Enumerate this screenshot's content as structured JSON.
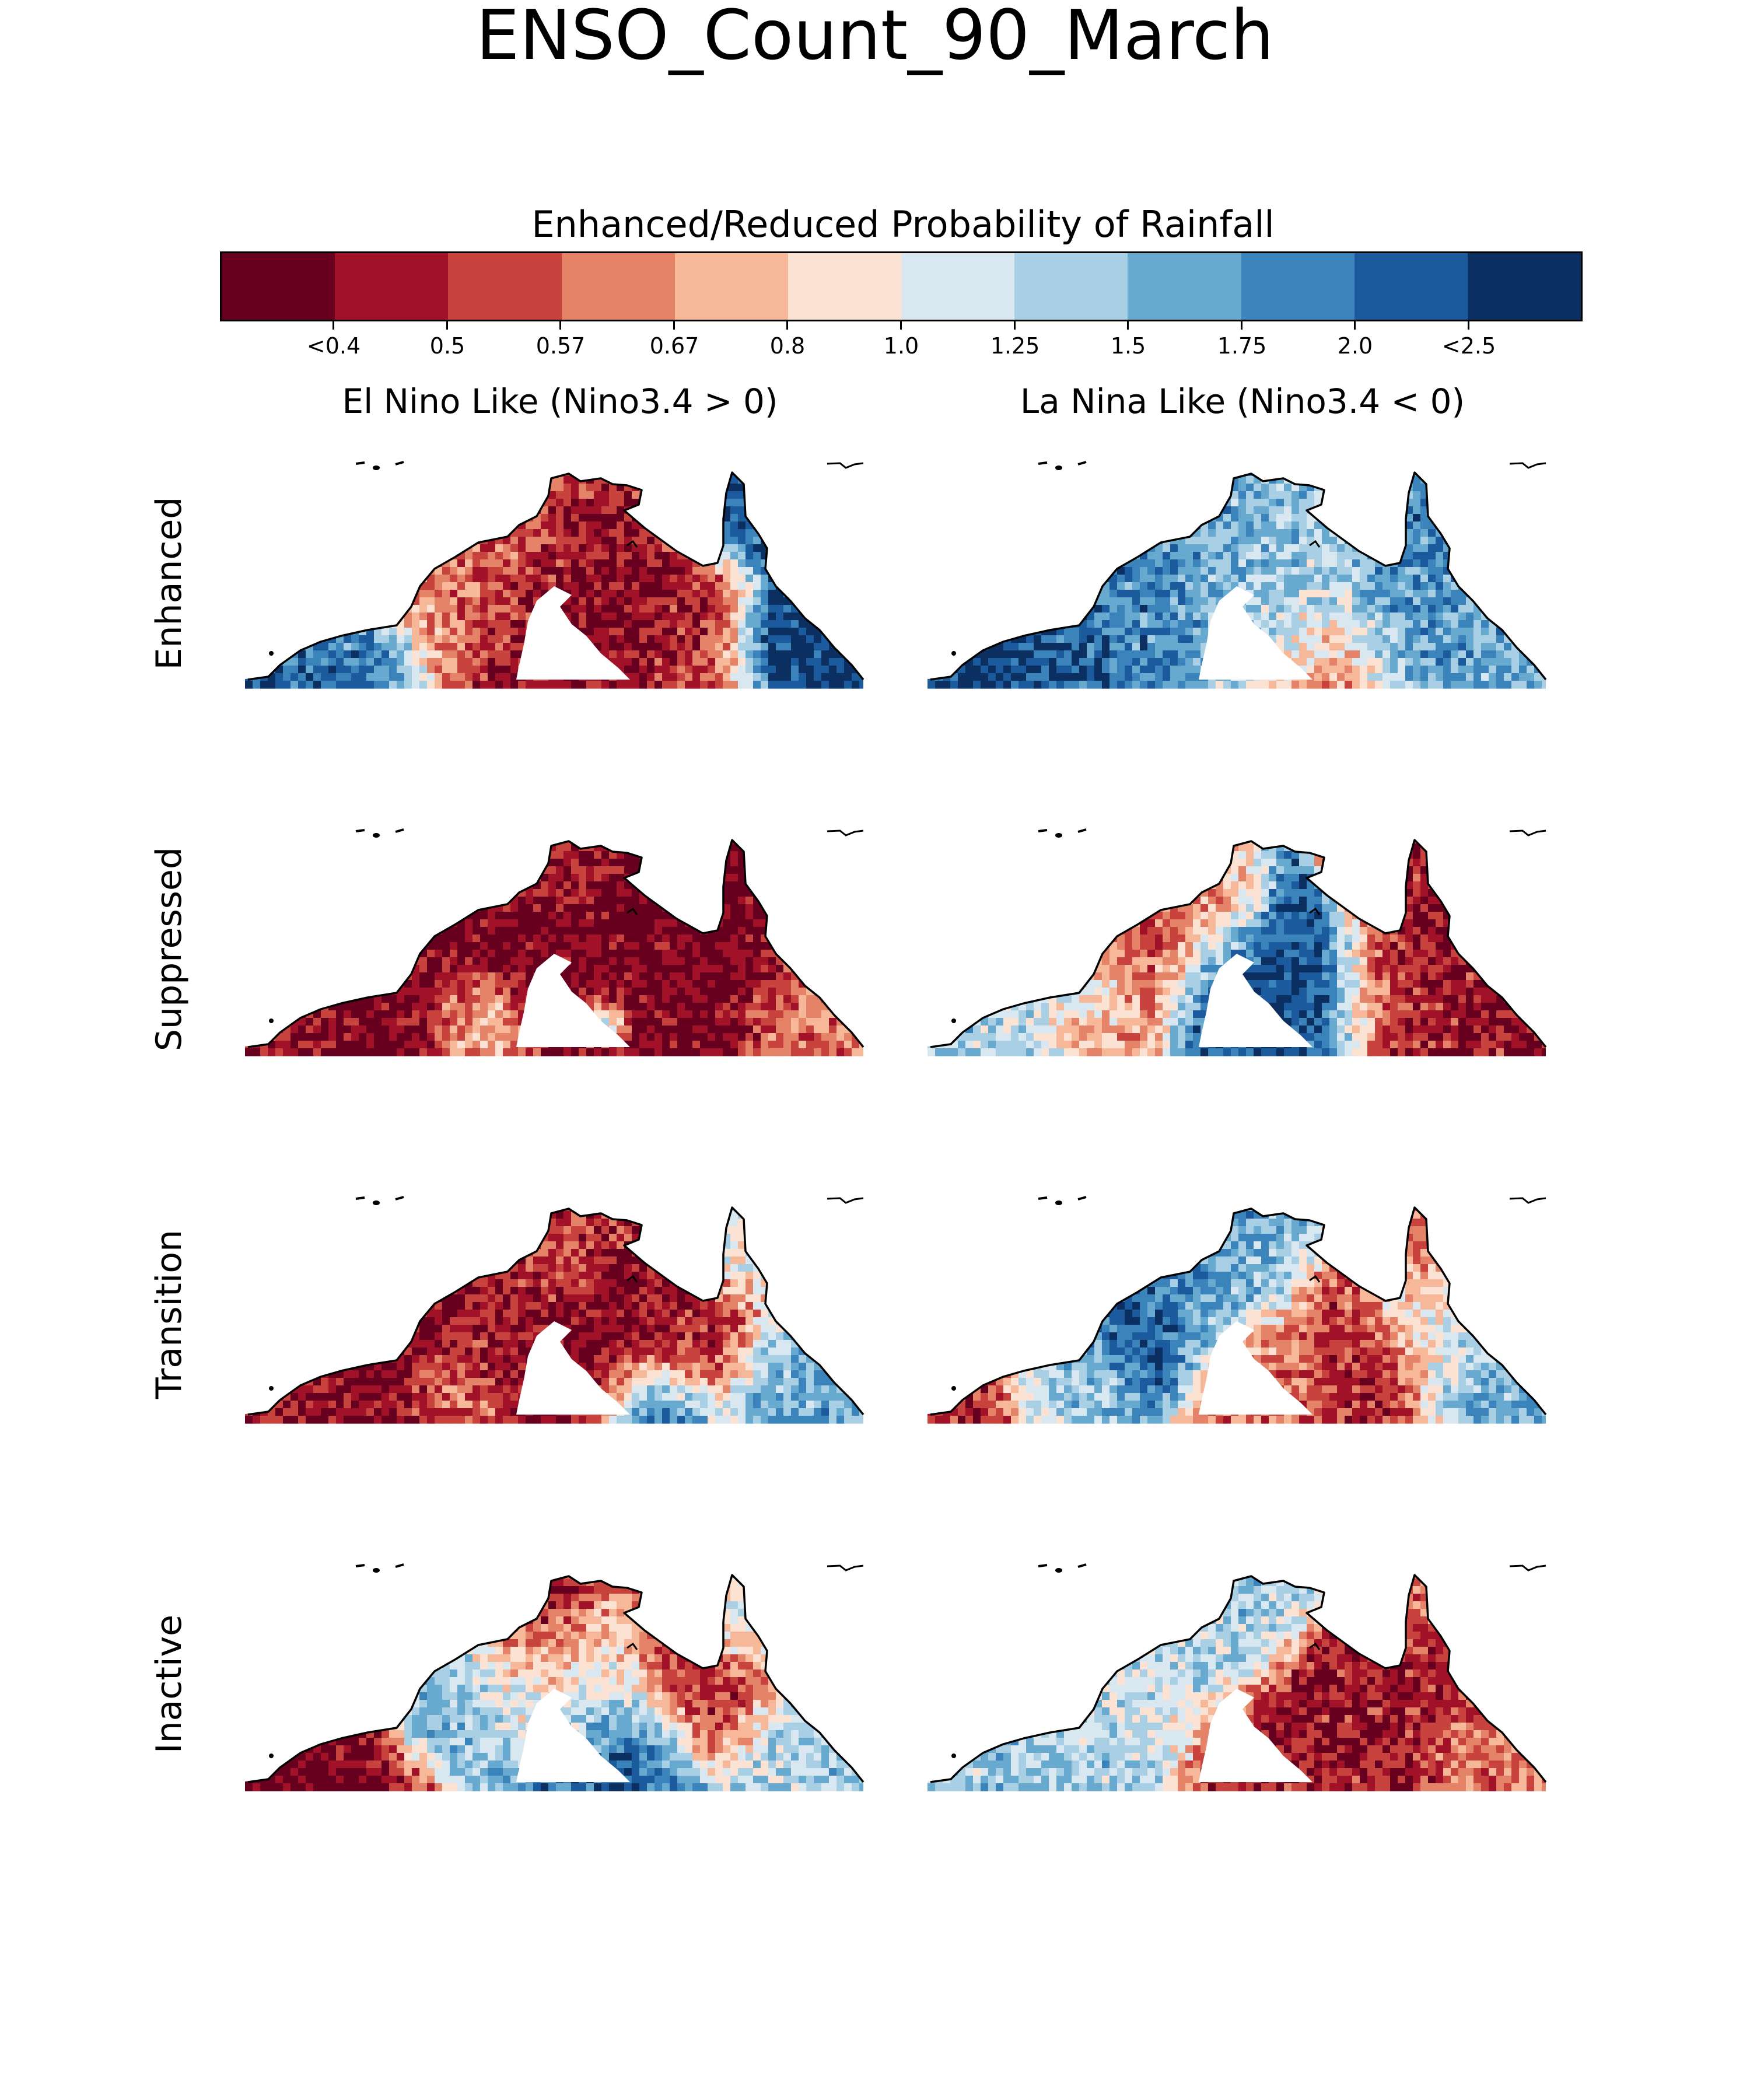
{
  "title": "ENSO_Count_90_March",
  "colorbar": {
    "title": "Enhanced/Reduced Probability of Rainfall",
    "colors": [
      "#67001f",
      "#a11228",
      "#c9433e",
      "#e58368",
      "#f6b899",
      "#fbe2d3",
      "#d9e8f0",
      "#a8cfe4",
      "#68a9cf",
      "#3a84bb",
      "#1b5a9c",
      "#0c2f61"
    ],
    "tick_labels": [
      "<0.4",
      "0.5",
      "0.57",
      "0.67",
      "0.8",
      "1.0",
      "1.25",
      "1.5",
      "1.75",
      "2.0",
      "<2.5"
    ]
  },
  "columns": [
    "El Nino Like (Nino3.4 > 0)",
    "La Nina Like (Nino3.4 < 0)"
  ],
  "rows": [
    "Enhanced",
    "Suppressed",
    "Transition",
    "Inactive"
  ],
  "panels": [
    {
      "row": "Enhanced",
      "column": "El Nino Like (Nino3.4 > 0)",
      "dominant": "mixed: reduced (red) interior, enhanced (blue) Cape York east and far west"
    },
    {
      "row": "Enhanced",
      "column": "La Nina Like (Nino3.4 < 0)",
      "dominant": "mostly enhanced (blue)"
    },
    {
      "row": "Suppressed",
      "column": "El Nino Like (Nino3.4 > 0)",
      "dominant": "strongly reduced (dark red)"
    },
    {
      "row": "Suppressed",
      "column": "La Nina Like (Nino3.4 < 0)",
      "dominant": "mixed: enhanced (blue) Gulf interior, reduced (red) Cape York"
    },
    {
      "row": "Transition",
      "column": "El Nino Like (Nino3.4 > 0)",
      "dominant": "mostly reduced (red)"
    },
    {
      "row": "Transition",
      "column": "La Nina Like (Nino3.4 < 0)",
      "dominant": "mixed: enhanced (blue) Top End north, reduced (red) Gulf south"
    },
    {
      "row": "Inactive",
      "column": "El Nino Like (Nino3.4 > 0)",
      "dominant": "mixed: reduced (red) far west and north, enhanced (blue) central"
    },
    {
      "row": "Inactive",
      "column": "La Nina Like (Nino3.4 < 0)",
      "dominant": "mixed: near-normal to enhanced west, reduced (red) Gulf south"
    }
  ]
}
